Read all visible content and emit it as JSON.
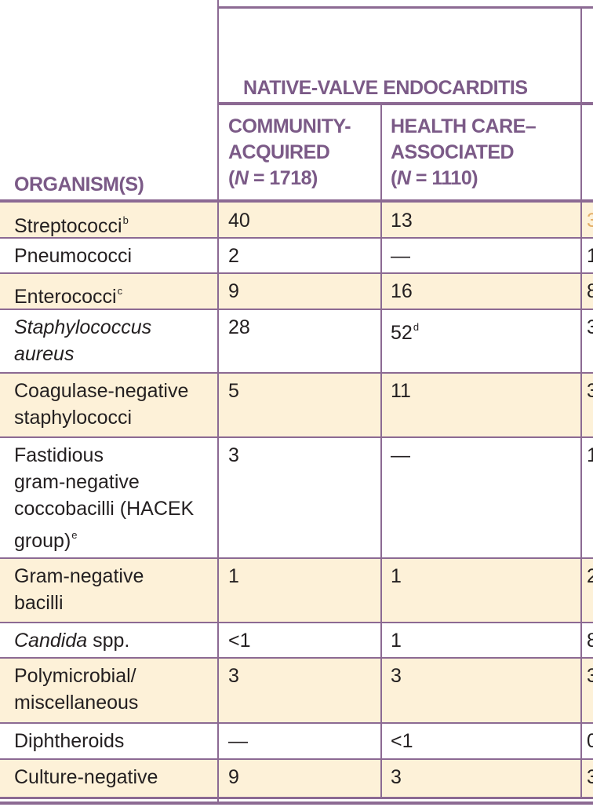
{
  "header": {
    "group_title": "NATIVE-VALVE ENDOCARDITIS",
    "col_organism": "ORGANISM(S)",
    "col_community": {
      "line1": "COMMUNITY-",
      "line2": "ACQUIRED",
      "n_open": "(",
      "n_label": "N",
      "n_value": " = 1718)"
    },
    "col_health": {
      "line1": "HEALTH CARE–",
      "line2": "ASSOCIATED",
      "n_open": "(",
      "n_label": "N",
      "n_value": " = 1110)"
    }
  },
  "rows": [
    {
      "organism": "Streptococci",
      "sup": "b",
      "community": "40",
      "health": "13"
    },
    {
      "organism": "Pneumococci",
      "community": "2",
      "health": "—"
    },
    {
      "organism": "Enterococci",
      "sup": "c",
      "community": "9",
      "health": "16"
    },
    {
      "organism_line1": "Staphylococcus",
      "organism_line2": "aureus",
      "community": "28",
      "health": "52",
      "health_sup": "d"
    },
    {
      "organism_line1": "Coagulase-negative",
      "organism_line2": "staphylococci",
      "community": "5",
      "health": "11"
    },
    {
      "organism_line1": "Fastidious",
      "organism_line2": "gram-negative",
      "organism_line3": "coccobacilli (HACEK",
      "organism_line4": "group)",
      "sup": "e",
      "community": "3",
      "health": "—"
    },
    {
      "organism_line1": "Gram-negative",
      "organism_line2": "bacilli",
      "community": "1",
      "health": "1"
    },
    {
      "organism_italic": "Candida",
      "organism_rest": " spp.",
      "community": "<1",
      "health": "1"
    },
    {
      "organism_line1": "Polymicrobial/",
      "organism_line2": "miscellaneous",
      "community": "3",
      "health": "3"
    },
    {
      "organism": "Diphtheroids",
      "community": "—",
      "health": "<1"
    },
    {
      "organism": "Culture-negative",
      "community": "9",
      "health": "3"
    }
  ]
}
